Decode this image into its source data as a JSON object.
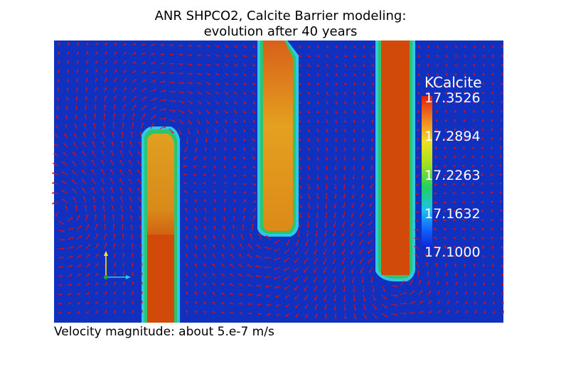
{
  "title": {
    "line1": "ANR SHPCO2, Calcite Barrier modeling:",
    "line2": "evolution after 40 years"
  },
  "legend": {
    "title": "KCalcite",
    "ticks": [
      "17.3526",
      "17.2894",
      "17.2263",
      "17.1632",
      "17.1000"
    ],
    "min": 17.1,
    "max": 17.3526
  },
  "caption": "Velocity magnitude: about 5.e-7 m/s",
  "colors": {
    "background_field": "#1030c0",
    "barrier_fill": "#d14a0a",
    "barrier_edge_green": "#2ec46a",
    "barrier_edge_cyan": "#30c8e8",
    "vectors": "#e01010"
  },
  "axes_icon": {
    "name": "xyz-axes-icon"
  }
}
